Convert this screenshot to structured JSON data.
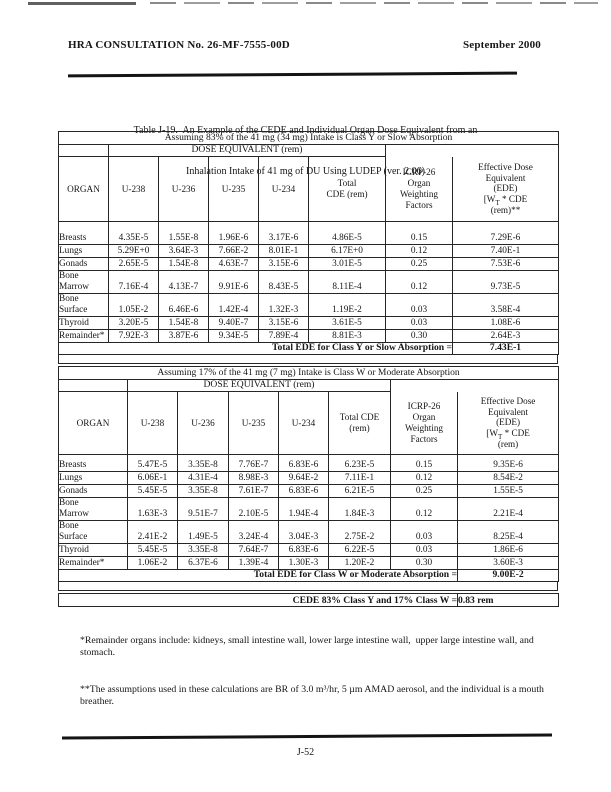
{
  "page_header": {
    "left": "HRA CONSULTATION No. 26-MF-7555-00D",
    "right": "September 2000"
  },
  "title": {
    "line1": "Table J-19.  An Example of the CEDE and Individual Organ Dose Equivalent from an",
    "line2": "Inhalation Intake of 41 mg of DU Using LUDEP (ver. 2.06)"
  },
  "tables": [
    {
      "name": "class-y-slow-absorption",
      "caption": "Assuming 83% of the 41 mg (34 mg) Intake is Class Y or Slow Absorption",
      "dose_header": "DOSE EQUIVALENT (rem)",
      "columns": [
        "ORGAN",
        "U-238",
        "U-236",
        "U-235",
        "U-234",
        "Total\nCDE (rem)",
        "ICRP-26\nOrgan\nWeighting\nFactors",
        "Effective Dose\nEquivalent\n(EDE)\n[W~T~ * CDE\n(rem)**"
      ],
      "rows": [
        {
          "organ": "Breasts",
          "values": [
            "4.35E-5",
            "1.55E-8",
            "1.96E-6",
            "3.17E-6",
            "4.86E-5",
            "0.15",
            "7.29E-6"
          ]
        },
        {
          "organ": "Lungs",
          "values": [
            "5.29E+0",
            "3.64E-3",
            "7.66E-2",
            "8.01E-1",
            "6.17E+0",
            "0.12",
            "7.40E-1"
          ]
        },
        {
          "organ": "Gonads",
          "values": [
            "2.65E-5",
            "1.54E-8",
            "4.63E-7",
            "3.15E-6",
            "3.01E-5",
            "0.25",
            "7.53E-6"
          ]
        },
        {
          "organ": "Bone\nMarrow",
          "values": [
            "7.16E-4",
            "4.13E-7",
            "9.91E-6",
            "8.43E-5",
            "8.11E-4",
            "0.12",
            "9.73E-5"
          ]
        },
        {
          "organ": "Bone\nSurface",
          "values": [
            "1.05E-2",
            "6.46E-6",
            "1.42E-4",
            "1.32E-3",
            "1.19E-2",
            "0.03",
            "3.58E-4"
          ]
        },
        {
          "organ": "Thyroid",
          "values": [
            "3.20E-5",
            "1.54E-8",
            "9.40E-7",
            "3.15E-6",
            "3.61E-5",
            "0.03",
            "1.08E-6"
          ]
        },
        {
          "organ": "Remainder*",
          "values": [
            "7.92E-3",
            "3.87E-6",
            "9.34E-5",
            "7.89E-4",
            "8.81E-3",
            "0.30",
            "2.64E-3"
          ]
        }
      ],
      "total_label": "Total EDE for Class Y or Slow Absorption =",
      "total_value": "7.43E-1"
    },
    {
      "name": "class-w-moderate-absorption",
      "caption": "Assuming 17% of the 41 mg (7 mg) Intake is Class W or Moderate Absorption",
      "dose_header": "DOSE EQUIVALENT (rem)",
      "columns": [
        "ORGAN",
        "U-238",
        "U-236",
        "U-235",
        "U-234",
        "Total CDE\n(rem)",
        "ICRP-26\nOrgan\nWeighting\nFactors",
        "Effective Dose\nEquivalent\n(EDE)\n[W~T~ * CDE\n(rem)"
      ],
      "rows": [
        {
          "organ": "Breasts",
          "values": [
            "5.47E-5",
            "3.35E-8",
            "7.76E-7",
            "6.83E-6",
            "6.23E-5",
            "0.15",
            "9.35E-6"
          ]
        },
        {
          "organ": "Lungs",
          "values": [
            "6.06E-1",
            "4.31E-4",
            "8.98E-3",
            "9.64E-2",
            "7.11E-1",
            "0.12",
            "8.54E-2"
          ]
        },
        {
          "organ": "Gonads",
          "values": [
            "5.45E-5",
            "3.35E-8",
            "7.61E-7",
            "6.83E-6",
            "6.21E-5",
            "0.25",
            "1.55E-5"
          ]
        },
        {
          "organ": "Bone\nMarrow",
          "values": [
            "1.63E-3",
            "9.51E-7",
            "2.10E-5",
            "1.94E-4",
            "1.84E-3",
            "0.12",
            "2.21E-4"
          ]
        },
        {
          "organ": "Bone\nSurface",
          "values": [
            "2.41E-2",
            "1.49E-5",
            "3.24E-4",
            "3.04E-3",
            "2.75E-2",
            "0.03",
            "8.25E-4"
          ]
        },
        {
          "organ": "Thyroid",
          "values": [
            "5.45E-5",
            "3.35E-8",
            "7.64E-7",
            "6.83E-6",
            "6.22E-5",
            "0.03",
            "1.86E-6"
          ]
        },
        {
          "organ": "Remainder*",
          "values": [
            "1.06E-2",
            "6.37E-6",
            "1.39E-4",
            "1.30E-3",
            "1.20E-2",
            "0.30",
            "3.60E-3"
          ]
        }
      ],
      "total_label": "Total EDE for Class W or Moderate Absorption =",
      "total_value": "9.00E-2"
    }
  ],
  "summary": {
    "label": "CEDE 83% Class Y and 17% Class W =",
    "value": "0.83 rem"
  },
  "footnotes": [
    "*Remainder organs include: kidneys, small intestine wall, lower large intestine wall,  upper large intestine wall, and stomach.",
    "**The assumptions used in these calculations are BR of 3.0 m³/hr, 5 µm AMAD aerosol, and the individual is a mouth breather."
  ],
  "footer": {
    "page_number": "J-52"
  }
}
